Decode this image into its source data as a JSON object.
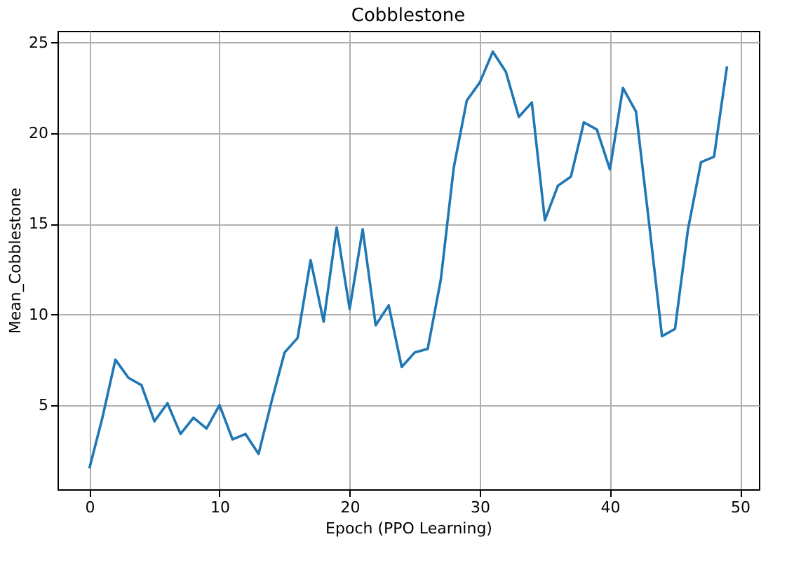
{
  "chart_data": {
    "type": "line",
    "title": "Cobblestone",
    "xlabel": "Epoch (PPO Learning)",
    "ylabel": "Mean_Cobblestone",
    "x": [
      0,
      1,
      2,
      3,
      4,
      5,
      6,
      7,
      8,
      9,
      10,
      11,
      12,
      13,
      14,
      15,
      16,
      17,
      18,
      19,
      20,
      21,
      22,
      23,
      24,
      25,
      26,
      27,
      28,
      29,
      30,
      31,
      32,
      33,
      34,
      35,
      36,
      37,
      38,
      39,
      40,
      41,
      42,
      43,
      44,
      45,
      46,
      47,
      48,
      49
    ],
    "series": [
      {
        "color": "#1f77b4",
        "values": [
          1.5,
          4.3,
          7.5,
          6.5,
          6.1,
          4.1,
          5.1,
          3.4,
          4.3,
          3.7,
          5.0,
          3.1,
          3.4,
          2.3,
          5.2,
          7.9,
          8.7,
          13.0,
          9.6,
          14.8,
          10.3,
          14.7,
          9.4,
          10.5,
          7.1,
          7.9,
          8.1,
          11.9,
          18.1,
          21.8,
          22.8,
          24.5,
          23.4,
          20.9,
          21.7,
          15.2,
          17.1,
          17.6,
          20.6,
          20.2,
          18.0,
          22.5,
          21.2,
          15.1,
          8.8,
          9.2,
          14.7,
          18.4,
          18.7,
          23.7
        ]
      }
    ],
    "xlim": [
      -2.45,
      51.45
    ],
    "ylim": [
      0.35,
      25.65
    ],
    "xticks": [
      0,
      10,
      20,
      30,
      40,
      50
    ],
    "yticks": [
      5,
      10,
      15,
      20,
      25
    ],
    "grid": true,
    "marker": "none",
    "line_style": "solid"
  }
}
